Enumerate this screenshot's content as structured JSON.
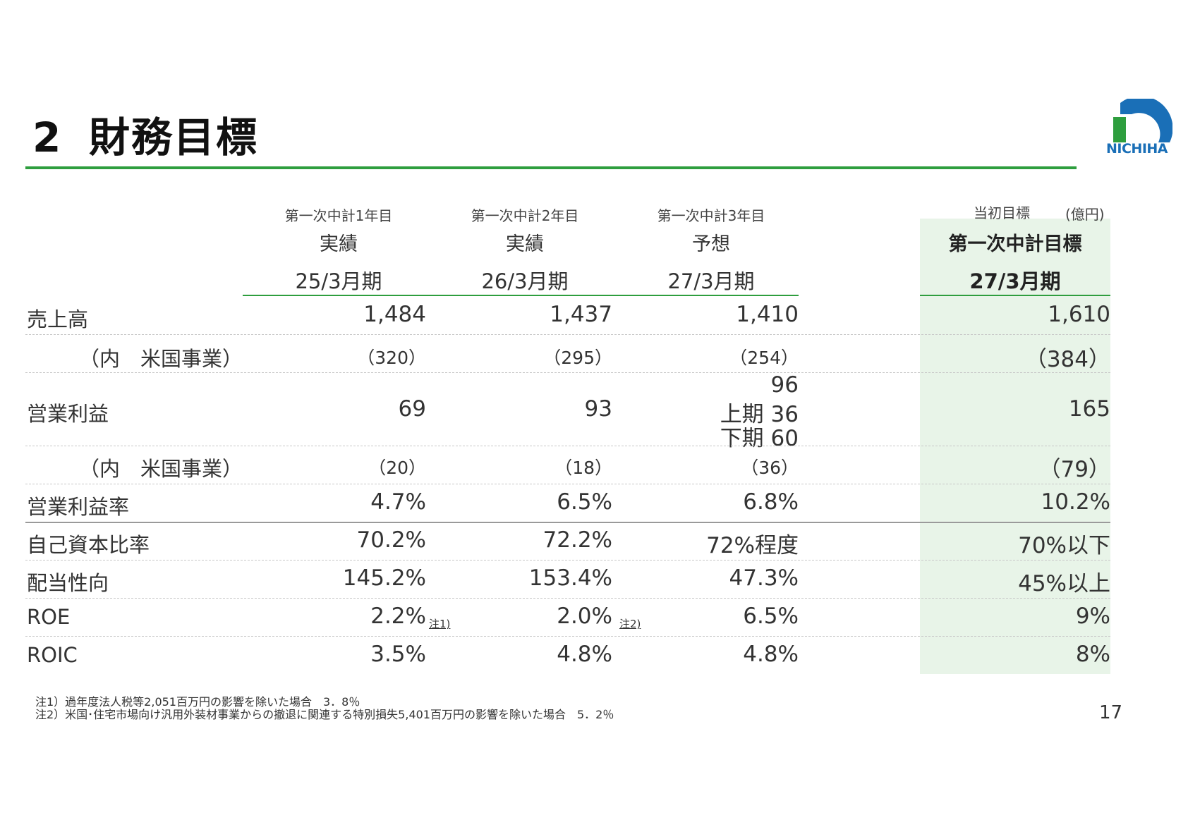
{
  "title": {
    "number": "2",
    "text": "財務目標"
  },
  "logo": {
    "text": "NICHIHA"
  },
  "unit": "(億円)",
  "columns": [
    {
      "top": "第一次中計1年目",
      "mid": "実績",
      "period": "25/3月期"
    },
    {
      "top": "第一次中計2年目",
      "mid": "実績",
      "period": "26/3月期"
    },
    {
      "top": "第一次中計3年目",
      "mid": "予想",
      "period": "27/3月期"
    },
    {
      "top": "当初目標",
      "mid": "第一次中計目標",
      "period": "27/3月期"
    }
  ],
  "rows": {
    "sales": {
      "label": "売上高",
      "values": [
        "1,484",
        "1,437",
        "1,410",
        "1,610"
      ]
    },
    "sales_us": {
      "label": "（内　米国事業）",
      "values": [
        "（320）",
        "（295）",
        "（254）",
        "（384）"
      ]
    },
    "op_profit": {
      "label": "営業利益",
      "values": [
        "69",
        "93",
        "96",
        "165"
      ],
      "forecast_breakdown": [
        "上期 36",
        "下期 60"
      ]
    },
    "op_profit_us": {
      "label": "（内　米国事業）",
      "values": [
        "（20）",
        "（18）",
        "（36）",
        "（79）"
      ]
    },
    "op_margin": {
      "label": "営業利益率",
      "values": [
        "4.7%",
        "6.5%",
        "6.8%",
        "10.2%"
      ]
    },
    "equity_ratio": {
      "label": "自己資本比率",
      "values": [
        "70.2%",
        "72.2%",
        "72%程度",
        "70%以下"
      ]
    },
    "payout": {
      "label": "配当性向",
      "values": [
        "145.2%",
        "153.4%",
        "47.3%",
        "45%以上"
      ]
    },
    "roe": {
      "label": "ROE",
      "values": [
        "2.2%",
        "2.0%",
        "6.5%",
        "9%"
      ],
      "notes": [
        "注1)",
        "注2)"
      ]
    },
    "roic": {
      "label": "ROIC",
      "values": [
        "3.5%",
        "4.8%",
        "4.8%",
        "8%"
      ]
    }
  },
  "footnotes": [
    "注1）過年度法人税等2,051百万円の影響を除いた場合　3．8％",
    "注2）米国･住宅市場向け汎用外装材事業からの撤退に関連する特別損失5,401百万円の影響を除いた場合　5．2％"
  ],
  "page_number": "17",
  "colors": {
    "accent_green": "#2e9e3e",
    "highlight_bg": "#e8f4e8",
    "logo_blue": "#1a6fb7"
  }
}
